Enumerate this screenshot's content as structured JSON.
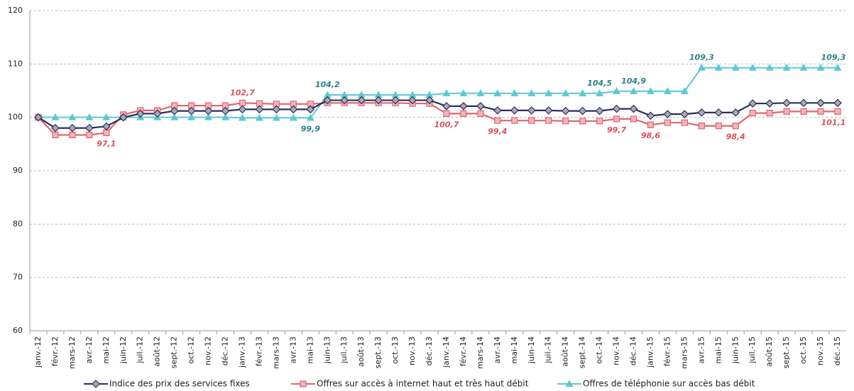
{
  "chart_data": {
    "type": "line",
    "categories": [
      "janv.-12",
      "févr.-12",
      "mars-12",
      "avr.-12",
      "mai-12",
      "juin-12",
      "juil.-12",
      "août-12",
      "sept.-12",
      "oct.-12",
      "nov.-12",
      "déc.-12",
      "janv.-13",
      "févr.-13",
      "mars-13",
      "avr.-13",
      "mai-13",
      "juin-13",
      "juil.-13",
      "août-13",
      "sept.-13",
      "oct.-13",
      "nov.-13",
      "déc.-13",
      "janv.-14",
      "févr.-14",
      "mars-14",
      "avr.-14",
      "mai-14",
      "juin-14",
      "juil.-14",
      "août-14",
      "sept.-14",
      "oct.-14",
      "nov.-14",
      "déc.-14",
      "janv.-15",
      "févr.-15",
      "mars-15",
      "avr.-15",
      "mai-15",
      "juin-15",
      "juil.-15",
      "août-15",
      "sept.-15",
      "oct.-15",
      "nov.-15",
      "déc.-15"
    ],
    "series": [
      {
        "name": "Indice des prix des services fixes",
        "color": "#2e2d5c",
        "marker": "diamond",
        "values": [
          100,
          98,
          98,
          98,
          98.3,
          100,
          100.7,
          100.7,
          101.2,
          101.2,
          101.2,
          101.2,
          101.5,
          101.5,
          101.5,
          101.5,
          101.5,
          103.2,
          103.2,
          103.2,
          103.2,
          103.2,
          103.2,
          103.2,
          102.1,
          102.1,
          102.1,
          101.3,
          101.3,
          101.3,
          101.3,
          101.2,
          101.2,
          101.2,
          101.6,
          101.6,
          100.3,
          100.6,
          100.6,
          100.9,
          100.9,
          100.9,
          102.6,
          102.6,
          102.7,
          102.7,
          102.7,
          102.7
        ]
      },
      {
        "name": "Offres sur accès à internet haut et très haut débit",
        "color": "#e06570",
        "marker": "square",
        "label_color": "#d9505a",
        "values": [
          100,
          96.7,
          96.7,
          96.7,
          97.1,
          100.5,
          101.3,
          101.3,
          102.2,
          102.2,
          102.2,
          102.2,
          102.7,
          102.6,
          102.5,
          102.5,
          102.5,
          102.7,
          102.7,
          102.7,
          102.7,
          102.7,
          102.6,
          102.6,
          100.7,
          100.7,
          100.7,
          99.4,
          99.4,
          99.4,
          99.4,
          99.3,
          99.3,
          99.3,
          99.7,
          99.7,
          98.6,
          99,
          99,
          98.4,
          98.4,
          98.4,
          100.8,
          100.8,
          101.1,
          101.1,
          101.1,
          101.1
        ],
        "value_labels": [
          null,
          null,
          null,
          null,
          "97,1",
          null,
          null,
          null,
          null,
          null,
          null,
          null,
          "102,7",
          null,
          null,
          null,
          null,
          null,
          null,
          null,
          null,
          null,
          null,
          null,
          "100,7",
          null,
          null,
          "99,4",
          null,
          null,
          null,
          null,
          null,
          null,
          "99,7",
          null,
          "98,6",
          null,
          null,
          null,
          null,
          "98,4",
          null,
          null,
          null,
          null,
          null,
          "101,1"
        ]
      },
      {
        "name": "Offres de téléphonie sur accès bas débit",
        "color": "#5ec8d2",
        "marker": "triangle",
        "label_color": "#2e7d8a",
        "values": [
          100,
          100,
          100,
          100,
          100,
          100,
          100,
          100,
          100,
          100,
          100,
          100,
          99.9,
          99.9,
          99.9,
          99.9,
          99.9,
          104.2,
          104.2,
          104.2,
          104.2,
          104.2,
          104.2,
          104.2,
          104.5,
          104.5,
          104.5,
          104.5,
          104.5,
          104.5,
          104.5,
          104.5,
          104.5,
          104.5,
          104.9,
          104.9,
          104.9,
          104.9,
          104.9,
          109.3,
          109.3,
          109.3,
          109.3,
          109.3,
          109.3,
          109.3,
          109.3,
          109.3
        ],
        "value_labels": [
          null,
          null,
          null,
          null,
          null,
          null,
          null,
          null,
          null,
          null,
          null,
          null,
          null,
          null,
          null,
          null,
          "99,9",
          "104,2",
          null,
          null,
          null,
          null,
          null,
          null,
          null,
          null,
          null,
          null,
          null,
          null,
          null,
          null,
          null,
          "104,5",
          null,
          "104,9",
          null,
          null,
          null,
          "109,3",
          null,
          null,
          null,
          null,
          null,
          null,
          null,
          "109,3"
        ]
      }
    ],
    "ylim": [
      60,
      120
    ],
    "yticks": [
      60,
      70,
      80,
      90,
      100,
      110,
      120
    ],
    "grid": true
  }
}
